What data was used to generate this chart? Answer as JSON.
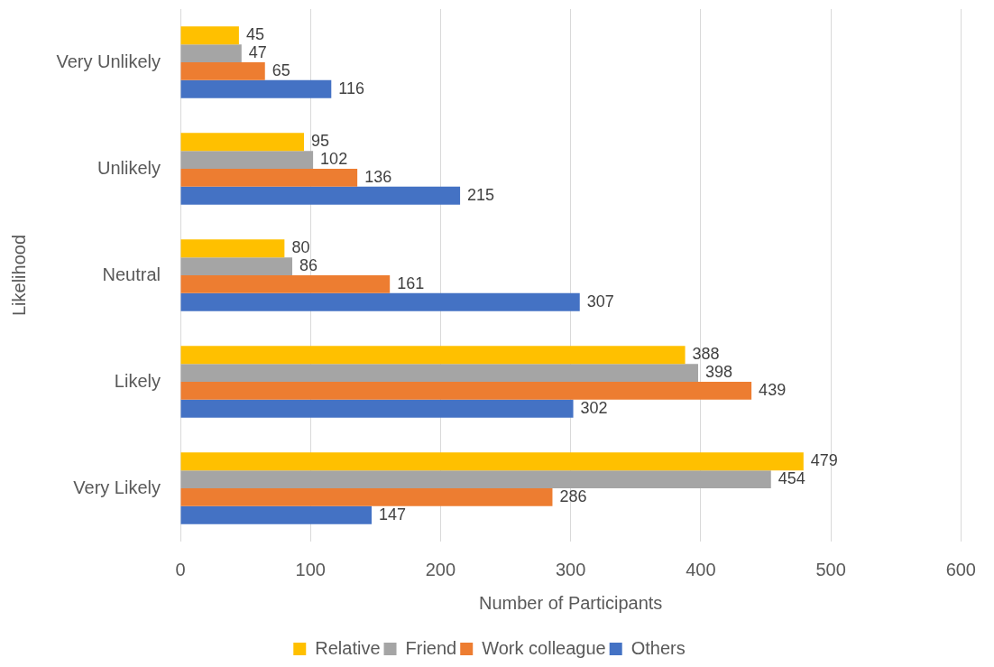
{
  "chart_data": {
    "type": "bar",
    "orientation": "horizontal",
    "xlabel": "Number of Participants",
    "ylabel": "Likelihood",
    "categories": [
      "Very Unlikely",
      "Unlikely",
      "Neutral",
      "Likely",
      "Very Likely"
    ],
    "series": [
      {
        "name": "Relative",
        "color": "#ffc000",
        "values": [
          45,
          95,
          80,
          388,
          479
        ]
      },
      {
        "name": "Friend",
        "color": "#a5a5a5",
        "values": [
          47,
          102,
          86,
          398,
          454
        ]
      },
      {
        "name": "Work colleague",
        "color": "#ed7d31",
        "values": [
          65,
          136,
          161,
          439,
          286
        ]
      },
      {
        "name": "Others",
        "color": "#4472c4",
        "values": [
          116,
          215,
          307,
          302,
          147
        ]
      }
    ],
    "xlim": [
      0,
      600
    ],
    "xticks": [
      0,
      100,
      200,
      300,
      400,
      500,
      600
    ],
    "grid": "x",
    "legend": "bottom",
    "data_labels": true
  }
}
